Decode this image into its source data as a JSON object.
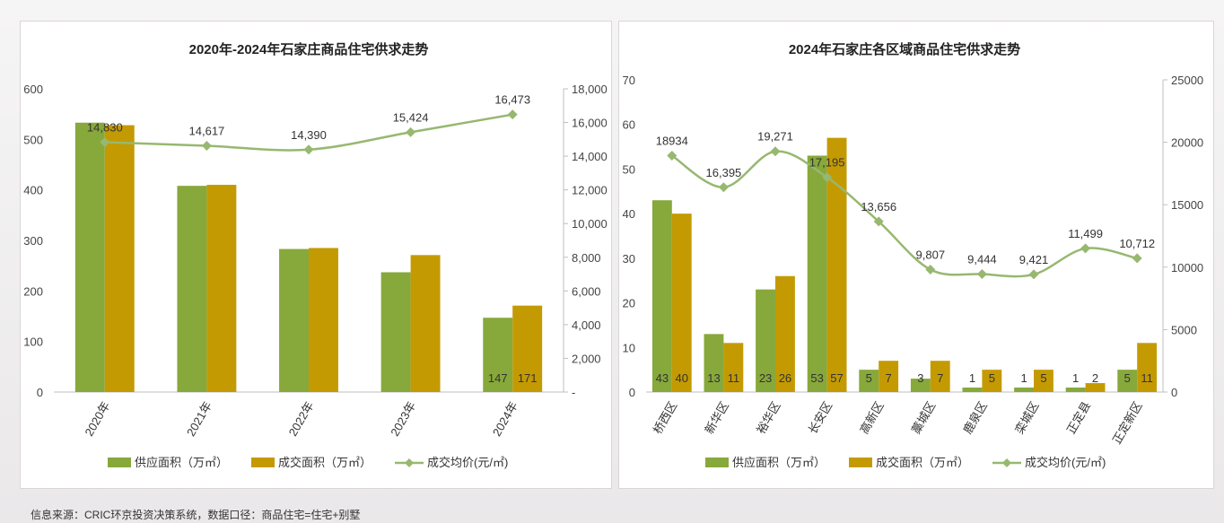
{
  "chart_data": [
    {
      "type": "bar",
      "title": "2020年-2024年石家庄商品住宅供求走势",
      "categories": [
        "2020年",
        "2021年",
        "2022年",
        "2023年",
        "2024年"
      ],
      "series": [
        {
          "name": "供应面积（万㎡）",
          "kind": "bar",
          "axis": "left",
          "color": "#87a83b",
          "values": [
            533,
            408,
            283,
            237,
            147
          ]
        },
        {
          "name": "成交面积（万㎡）",
          "kind": "bar",
          "axis": "left",
          "color": "#c49a03",
          "values": [
            528,
            410,
            285,
            271,
            171
          ]
        },
        {
          "name": "成交均价(元/㎡)",
          "kind": "line",
          "axis": "right",
          "color": "#97b870",
          "values": [
            14830,
            14617,
            14390,
            15424,
            16473
          ]
        }
      ],
      "bar_labels": {
        "2": [
          "",
          "",
          "",
          "",
          "147"
        ],
        "3": [
          "",
          "",
          "",
          "",
          "171"
        ]
      },
      "line_labels": [
        "14,830",
        "14,617",
        "14,390",
        "15,424",
        "16,473"
      ],
      "ylim_left": [
        0,
        600
      ],
      "yticks_left": [
        "0",
        "100",
        "200",
        "300",
        "400",
        "500",
        "600"
      ],
      "ylim_right": [
        0,
        18000
      ],
      "yticks_right": [
        "-",
        "2,000",
        "4,000",
        "6,000",
        "8,000",
        "10,000",
        "12,000",
        "14,000",
        "16,000",
        "18,000"
      ],
      "grid": false,
      "legend": "bottom"
    },
    {
      "type": "bar",
      "title": "2024年石家庄各区域商品住宅供求走势",
      "categories": [
        "桥西区",
        "新华区",
        "裕华区",
        "长安区",
        "高新区",
        "藁城区",
        "鹿泉区",
        "栾城区",
        "正定县",
        "正定新区"
      ],
      "series": [
        {
          "name": "供应面积（万㎡）",
          "kind": "bar",
          "axis": "left",
          "color": "#87a83b",
          "values": [
            43,
            13,
            23,
            53,
            5,
            3,
            1,
            1,
            1,
            5
          ]
        },
        {
          "name": "成交面积（万㎡）",
          "kind": "bar",
          "axis": "left",
          "color": "#c49a03",
          "values": [
            40,
            11,
            26,
            57,
            7,
            7,
            5,
            5,
            2,
            11
          ]
        },
        {
          "name": "成交均价(元/㎡)",
          "kind": "line",
          "axis": "right",
          "color": "#97b870",
          "values": [
            18934,
            16395,
            19271,
            17195,
            13656,
            9807,
            9444,
            9421,
            11499,
            10712
          ]
        }
      ],
      "bar_labels": {
        "0": [
          "43",
          "13",
          "23",
          "53",
          "5",
          "3",
          "1",
          "1",
          "1",
          "5"
        ],
        "1": [
          "40",
          "11",
          "26",
          "57",
          "7",
          "7",
          "5",
          "5",
          "2",
          "11"
        ]
      },
      "line_labels": [
        "18934",
        "16,395",
        "19,271",
        "17,195",
        "13,656",
        "9,807",
        "9,444",
        "9,421",
        "11,499",
        "10,712"
      ],
      "ylim_left": [
        0,
        70
      ],
      "yticks_left": [
        "0",
        "10",
        "20",
        "30",
        "40",
        "50",
        "60",
        "70"
      ],
      "ylim_right": [
        0,
        25000
      ],
      "yticks_right": [
        "0",
        "5000",
        "10000",
        "15000",
        "20000",
        "25000"
      ],
      "grid": false,
      "legend": "bottom"
    }
  ],
  "source_note": "信息来源：CRIC环京投资决策系统，数据口径：商品住宅=住宅+别墅"
}
